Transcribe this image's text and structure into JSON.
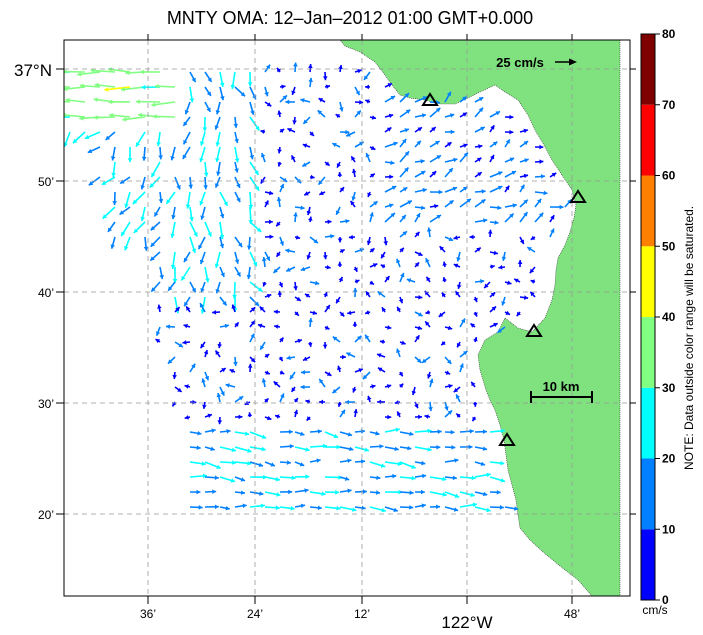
{
  "title": "MNTY OMA: 12–Jan–2012 01:00 GMT+0.000",
  "axes": {
    "lon_ticks": [
      "36’",
      "24’",
      "12’",
      "122°W",
      "48’"
    ],
    "lat_ticks": [
      "37°N",
      "50’",
      "40’",
      "30’",
      "20’"
    ]
  },
  "reference_vector_label": "25 cm/s",
  "distance_scale_label": "10 km",
  "colorbar": {
    "ticks": [
      "0",
      "10",
      "20",
      "30",
      "40",
      "50",
      "60",
      "70",
      "80"
    ],
    "unit": "cm/s",
    "colors": [
      "#0000ff",
      "#0080ff",
      "#00ffff",
      "#80ff80",
      "#ffff00",
      "#ff8000",
      "#ff0000",
      "#800000"
    ],
    "note": "NOTE: Data outside color range will be saturated."
  },
  "colors": {
    "land": "#7fe27f",
    "grid": "#999999",
    "arrow_slow": "#0000ff",
    "arrow_mid": "#0080ff",
    "arrow_fast": "#00ffff"
  },
  "stations": 4
}
